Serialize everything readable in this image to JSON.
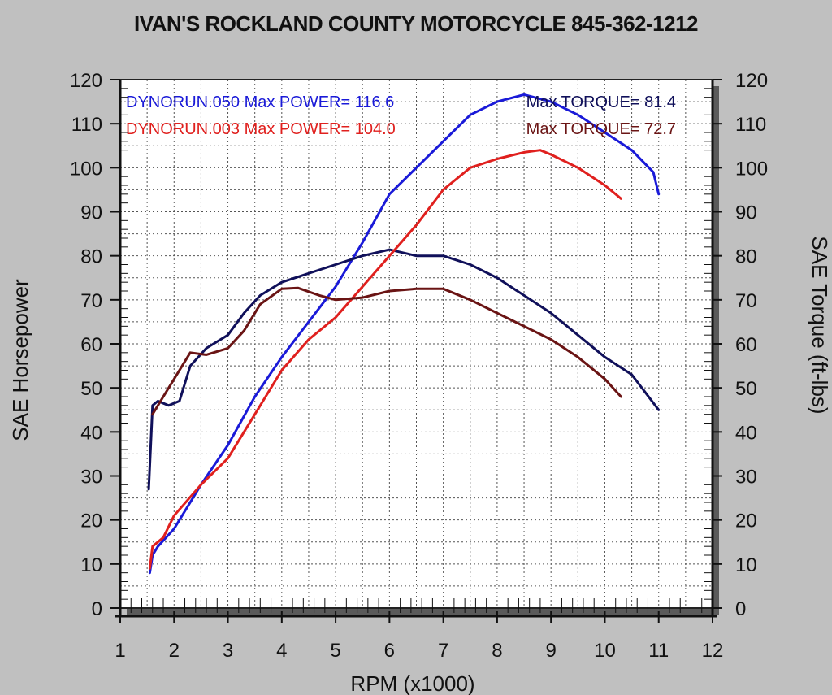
{
  "chart_data": {
    "type": "line",
    "title": "IVAN'S ROCKLAND COUNTY MOTORCYCLE 845-362-1212",
    "xlabel": "RPM (x1000)",
    "ylabel_left": "SAE Horsepower",
    "ylabel_right": "SAE Torque (ft-lbs)",
    "xlim": [
      1,
      12
    ],
    "ylim": [
      0,
      120
    ],
    "x_ticks": [
      "1",
      "2",
      "3",
      "4",
      "5",
      "6",
      "7",
      "8",
      "9",
      "10",
      "11",
      "12"
    ],
    "y_ticks": [
      "0",
      "10",
      "20",
      "30",
      "40",
      "50",
      "60",
      "70",
      "80",
      "90",
      "100",
      "110",
      "120"
    ],
    "grid": true,
    "annotations": [
      {
        "text": "DYNORUN.050  Max POWER= 116.6",
        "color": "#1a1ad8"
      },
      {
        "text": "Max TORQUE= 81.4",
        "color": "#10105a"
      },
      {
        "text": "DYNORUN.003  Max POWER= 104.0",
        "color": "#e0201e"
      },
      {
        "text": "Max TORQUE= 72.7",
        "color": "#6a1414"
      }
    ],
    "series": [
      {
        "name": "DYNORUN.050 Power",
        "color": "#1a1ad8",
        "points": [
          [
            1.55,
            8
          ],
          [
            1.6,
            12
          ],
          [
            1.7,
            14
          ],
          [
            2.0,
            18
          ],
          [
            2.5,
            28
          ],
          [
            3.0,
            37
          ],
          [
            3.5,
            48
          ],
          [
            4.0,
            57
          ],
          [
            4.5,
            65
          ],
          [
            5.0,
            73
          ],
          [
            5.5,
            83
          ],
          [
            6.0,
            94
          ],
          [
            6.5,
            100
          ],
          [
            7.0,
            106
          ],
          [
            7.5,
            112
          ],
          [
            8.0,
            115
          ],
          [
            8.5,
            116.6
          ],
          [
            9.0,
            115
          ],
          [
            9.5,
            112
          ],
          [
            10.0,
            108
          ],
          [
            10.5,
            104
          ],
          [
            10.9,
            99
          ],
          [
            11.0,
            94
          ]
        ]
      },
      {
        "name": "DYNORUN.050 Torque",
        "color": "#10105a",
        "points": [
          [
            1.53,
            27
          ],
          [
            1.6,
            46
          ],
          [
            1.7,
            47
          ],
          [
            1.9,
            46
          ],
          [
            2.1,
            47
          ],
          [
            2.3,
            55
          ],
          [
            2.6,
            59
          ],
          [
            3.0,
            62
          ],
          [
            3.3,
            67
          ],
          [
            3.6,
            71
          ],
          [
            4.0,
            74
          ],
          [
            4.5,
            76
          ],
          [
            5.0,
            78
          ],
          [
            5.5,
            80
          ],
          [
            6.0,
            81.4
          ],
          [
            6.5,
            80
          ],
          [
            7.0,
            80
          ],
          [
            7.5,
            78
          ],
          [
            8.0,
            75
          ],
          [
            8.5,
            71
          ],
          [
            9.0,
            67
          ],
          [
            9.5,
            62
          ],
          [
            10.0,
            57
          ],
          [
            10.5,
            53
          ],
          [
            11.0,
            45
          ]
        ]
      },
      {
        "name": "DYNORUN.003 Power",
        "color": "#e0201e",
        "points": [
          [
            1.55,
            9
          ],
          [
            1.6,
            14
          ],
          [
            1.8,
            16
          ],
          [
            2.0,
            21
          ],
          [
            2.5,
            28
          ],
          [
            3.0,
            34
          ],
          [
            3.5,
            44
          ],
          [
            4.0,
            54
          ],
          [
            4.5,
            61
          ],
          [
            5.0,
            66
          ],
          [
            5.5,
            73
          ],
          [
            6.0,
            80
          ],
          [
            6.5,
            87
          ],
          [
            7.0,
            95
          ],
          [
            7.5,
            100
          ],
          [
            8.0,
            102
          ],
          [
            8.5,
            103.5
          ],
          [
            8.8,
            104
          ],
          [
            9.0,
            103
          ],
          [
            9.5,
            100
          ],
          [
            10.0,
            96
          ],
          [
            10.3,
            93
          ]
        ]
      },
      {
        "name": "DYNORUN.003 Torque",
        "color": "#6a1414",
        "points": [
          [
            1.6,
            44
          ],
          [
            1.8,
            48
          ],
          [
            2.0,
            52
          ],
          [
            2.3,
            58
          ],
          [
            2.6,
            57.5
          ],
          [
            3.0,
            59
          ],
          [
            3.3,
            63
          ],
          [
            3.6,
            69
          ],
          [
            4.0,
            72.5
          ],
          [
            4.3,
            72.7
          ],
          [
            4.7,
            71
          ],
          [
            5.0,
            70
          ],
          [
            5.5,
            70.5
          ],
          [
            6.0,
            72
          ],
          [
            6.5,
            72.5
          ],
          [
            7.0,
            72.5
          ],
          [
            7.5,
            70
          ],
          [
            8.0,
            67
          ],
          [
            8.5,
            64
          ],
          [
            9.0,
            61
          ],
          [
            9.5,
            57
          ],
          [
            10.0,
            52
          ],
          [
            10.3,
            48
          ]
        ]
      }
    ]
  },
  "colors": {
    "background": "#c0c0c0",
    "plot_bg": "#ffffff",
    "grid": "#555555",
    "text": "#111111"
  }
}
